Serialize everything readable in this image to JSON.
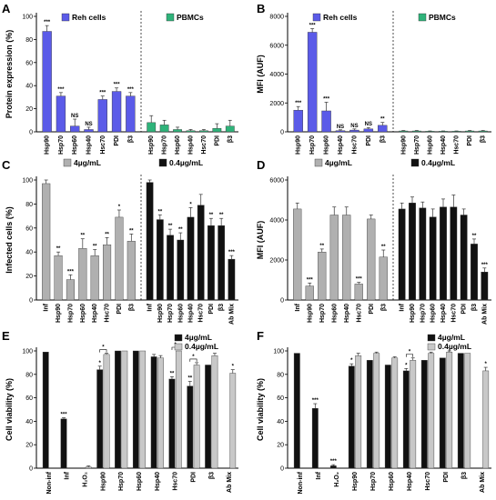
{
  "colors": {
    "reh": "#5b5be8",
    "pbmc": "#2fb37a",
    "gray": "#b0b0b0",
    "black": "#111111",
    "light": "#c8c8c8"
  },
  "chart_data": [
    {
      "id": "A",
      "type": "bar",
      "letter": "A",
      "ylabel": "Protein expression (%)",
      "ylim": [
        0,
        100
      ],
      "yticks": [
        0,
        20,
        40,
        60,
        80,
        100
      ],
      "groups": [
        {
          "legend": "Reh cells",
          "color": "reh",
          "categories": [
            "Hsp90",
            "Hsp70",
            "Hsp60",
            "Hsp40",
            "Hsc70",
            "PDI",
            "β3"
          ],
          "values": [
            87,
            31,
            5,
            2,
            28,
            35,
            31
          ],
          "err": [
            5,
            3,
            6,
            2,
            3,
            3,
            3
          ],
          "sig": [
            "***",
            "***",
            "NS",
            "NS",
            "***",
            "***",
            "***"
          ]
        },
        {
          "legend": "PBMCs",
          "color": "pbmc",
          "categories": [
            "Hsp90",
            "Hsp70",
            "Hsp60",
            "Hsp40",
            "Hsc70",
            "PDI",
            "β3"
          ],
          "values": [
            8,
            6,
            2,
            1,
            1,
            3,
            5
          ],
          "err": [
            6,
            4,
            2,
            1,
            1,
            4,
            5
          ],
          "sig": [
            "",
            "",
            "",
            "",
            "",
            "",
            ""
          ]
        }
      ]
    },
    {
      "id": "B",
      "type": "bar",
      "letter": "B",
      "ylabel": "MFI (AUF)",
      "ylim": [
        0,
        8000
      ],
      "yticks": [
        0,
        2000,
        4000,
        6000,
        8000
      ],
      "groups": [
        {
          "legend": "Reh cells",
          "color": "reh",
          "categories": [
            "Hsp90",
            "Hsp70",
            "Hsp60",
            "Hsp40",
            "Hsc70",
            "PDI",
            "β3"
          ],
          "values": [
            1500,
            6900,
            1450,
            80,
            120,
            200,
            450
          ],
          "err": [
            250,
            250,
            600,
            60,
            80,
            100,
            200
          ],
          "sig": [
            "***",
            "***",
            "***",
            "NS",
            "NS",
            "NS",
            "**"
          ]
        },
        {
          "legend": "PBMCs",
          "color": "pbmc",
          "categories": [
            "Hsp90",
            "Hsp70",
            "Hsp60",
            "Hsp40",
            "Hsc70",
            "PDI",
            "β3"
          ],
          "values": [
            60,
            60,
            40,
            40,
            40,
            60,
            60
          ],
          "err": [
            30,
            30,
            20,
            20,
            20,
            30,
            30
          ],
          "sig": [
            "",
            "",
            "",
            "",
            "",
            "",
            ""
          ]
        }
      ]
    },
    {
      "id": "C",
      "type": "bar",
      "letter": "C",
      "ylabel": "Infected cells (%)",
      "ylim": [
        0,
        100
      ],
      "yticks": [
        0,
        20,
        40,
        60,
        80,
        100
      ],
      "groups": [
        {
          "legend": "4µg/mL",
          "color": "gray",
          "categories": [
            "Inf",
            "Hsp90",
            "Hsp70",
            "Hsp60",
            "Hsp40",
            "Hsc70",
            "PDI",
            "β3"
          ],
          "values": [
            97,
            37,
            17,
            43,
            37,
            46,
            69,
            49
          ],
          "err": [
            3,
            3,
            4,
            8,
            5,
            6,
            6,
            6
          ],
          "sig": [
            "",
            "**",
            "***",
            "**",
            "**",
            "**",
            "*",
            "**"
          ]
        },
        {
          "legend": "0.4µg/mL",
          "color": "black",
          "categories": [
            "Inf",
            "Hsp90",
            "Hsp70",
            "Hsp60",
            "Hsp40",
            "Hsc70",
            "PDI",
            "β3",
            "Ab Mix"
          ],
          "values": [
            98,
            67,
            54,
            50,
            69,
            79,
            62,
            62,
            34
          ],
          "err": [
            2,
            4,
            5,
            6,
            8,
            9,
            6,
            6,
            3
          ],
          "sig": [
            "",
            "**",
            "**",
            "**",
            "*",
            "",
            "**",
            "**",
            "***"
          ]
        }
      ]
    },
    {
      "id": "D",
      "type": "bar",
      "letter": "D",
      "ylabel": "MFI (AUF)",
      "ylim": [
        0,
        6000
      ],
      "yticks": [
        0,
        2000,
        4000,
        6000
      ],
      "groups": [
        {
          "legend": "4µg/mL",
          "color": "gray",
          "categories": [
            "Inf",
            "Hsp90",
            "Hsp70",
            "Hsp60",
            "Hsp40",
            "Hsc70",
            "PDI",
            "β3"
          ],
          "values": [
            4550,
            700,
            2400,
            4250,
            4250,
            800,
            4050,
            2150
          ],
          "err": [
            300,
            150,
            150,
            400,
            400,
            80,
            200,
            350
          ],
          "sig": [
            "",
            "***",
            "**",
            "",
            "",
            "***",
            "",
            "**"
          ]
        },
        {
          "legend": "0.4µg/mL",
          "color": "black",
          "categories": [
            "Inf",
            "Hsp90",
            "Hsp70",
            "Hsp60",
            "Hsp40",
            "Hsc70",
            "PDI",
            "β3",
            "Ab Mix"
          ],
          "values": [
            4550,
            4850,
            4600,
            4150,
            4650,
            4650,
            4250,
            2800,
            1400
          ],
          "err": [
            300,
            300,
            300,
            400,
            400,
            600,
            300,
            250,
            200
          ],
          "sig": [
            "",
            "",
            "",
            "",
            "",
            "",
            "",
            "**",
            "***"
          ]
        }
      ]
    },
    {
      "id": "E",
      "type": "bar",
      "letter": "E",
      "ylabel": "Cell viability (%)",
      "ylim": [
        0,
        100
      ],
      "yticks": [
        0,
        20,
        40,
        60,
        80,
        100
      ],
      "legend": [
        {
          "label": "4µg/mL",
          "color": "black"
        },
        {
          "label": "0.4µg/mL",
          "color": "light"
        }
      ],
      "categories": [
        "Non-inf",
        "Inf",
        "H₂O₂",
        "Hsp90",
        "Hsp70",
        "Hsp60",
        "Hsp40",
        "Hsc70",
        "PDI",
        "β3",
        "Ab Mix"
      ],
      "series": [
        {
          "name": "4µg/mL",
          "color": "black",
          "values": [
            99,
            42,
            0,
            84,
            100,
            100,
            95,
            76,
            70,
            88,
            null
          ],
          "err": [
            0,
            1,
            0,
            3,
            0,
            0,
            2,
            2,
            4,
            0,
            0
          ],
          "sig": [
            "",
            "***",
            "",
            "*",
            "",
            "",
            "",
            "**",
            "**",
            "",
            ""
          ]
        },
        {
          "name": "0.4µg/mL",
          "color": "light",
          "values": [
            null,
            null,
            1,
            97,
            100,
            100,
            94,
            100,
            88,
            96,
            81
          ],
          "err": [
            0,
            0,
            1,
            1,
            0,
            0,
            2,
            0,
            2,
            2,
            3
          ],
          "sig": [
            "",
            "",
            "",
            "",
            "",
            "",
            "",
            "",
            "",
            "",
            "*"
          ]
        }
      ],
      "brackets": [
        [
          3,
          "*"
        ],
        [
          7,
          "*"
        ],
        [
          8,
          "*"
        ]
      ]
    },
    {
      "id": "F",
      "type": "bar",
      "letter": "F",
      "ylabel": "Cell viability (%)",
      "ylim": [
        0,
        100
      ],
      "yticks": [
        0,
        20,
        40,
        60,
        80,
        100
      ],
      "legend": [
        {
          "label": "4µg/mL",
          "color": "black"
        },
        {
          "label": "0.4µg/mL",
          "color": "light"
        }
      ],
      "categories": [
        "Non-inf",
        "Inf",
        "H₂O₂",
        "Hsp90",
        "Hsp70",
        "Hsp60",
        "Hsp40",
        "Hsc70",
        "PDI",
        "β3",
        "Ab Mix"
      ],
      "series": [
        {
          "name": "4µg/mL",
          "color": "black",
          "values": [
            98,
            51,
            2,
            87,
            92,
            88,
            83,
            92,
            94,
            98,
            null
          ],
          "err": [
            0,
            4,
            1,
            2,
            0,
            0,
            2,
            0,
            0,
            0,
            0
          ],
          "sig": [
            "",
            "***",
            "***",
            "*",
            "",
            "",
            "*",
            "",
            "",
            "",
            ""
          ]
        },
        {
          "name": "0.4µg/mL",
          "color": "light",
          "values": [
            null,
            null,
            null,
            96,
            98,
            94,
            92,
            98,
            99,
            98,
            83
          ],
          "err": [
            0,
            0,
            0,
            2,
            1,
            1,
            2,
            1,
            1,
            0,
            3
          ],
          "sig": [
            "",
            "",
            "",
            "",
            "",
            "",
            "",
            "",
            "",
            "",
            "*"
          ]
        }
      ],
      "brackets": [
        [
          6,
          "*"
        ]
      ]
    }
  ]
}
